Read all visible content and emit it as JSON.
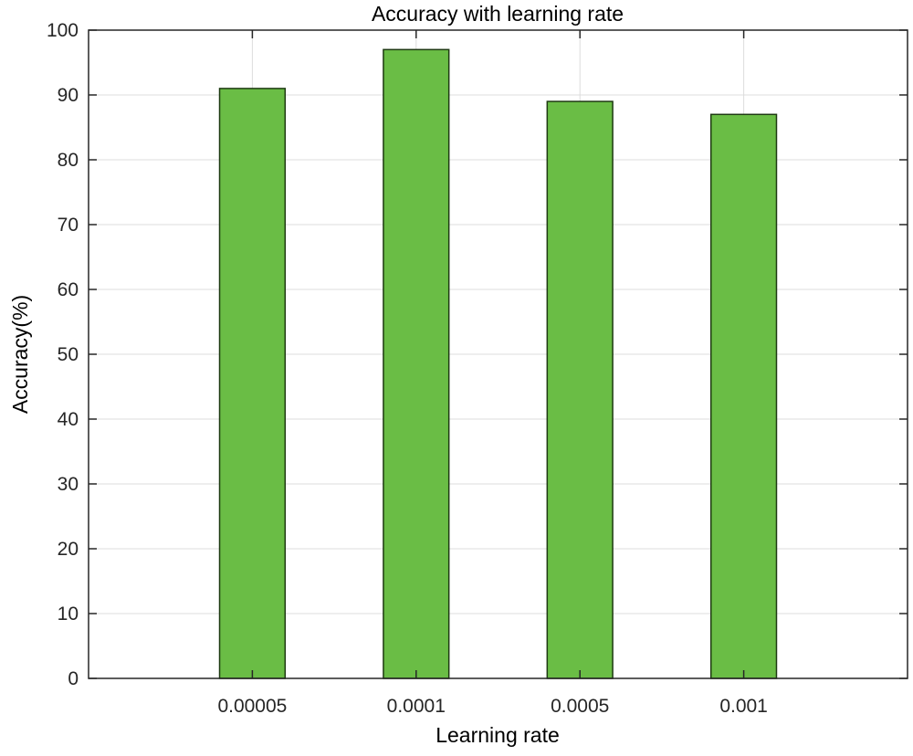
{
  "chart_data": {
    "type": "bar",
    "title": "Accuracy with learning rate",
    "xlabel": "Learning rate",
    "ylabel": "Accuracy(%)",
    "categories": [
      "0.00005",
      "0.0001",
      "0.0005",
      "0.001"
    ],
    "values": [
      91,
      97,
      89,
      87
    ],
    "ylim": [
      0,
      100
    ],
    "yticks": [
      0,
      10,
      20,
      30,
      40,
      50,
      60,
      70,
      80,
      90,
      100
    ],
    "grid": true,
    "bar_color": "#6abd45",
    "bar_edge_color": "#1e3a12"
  }
}
